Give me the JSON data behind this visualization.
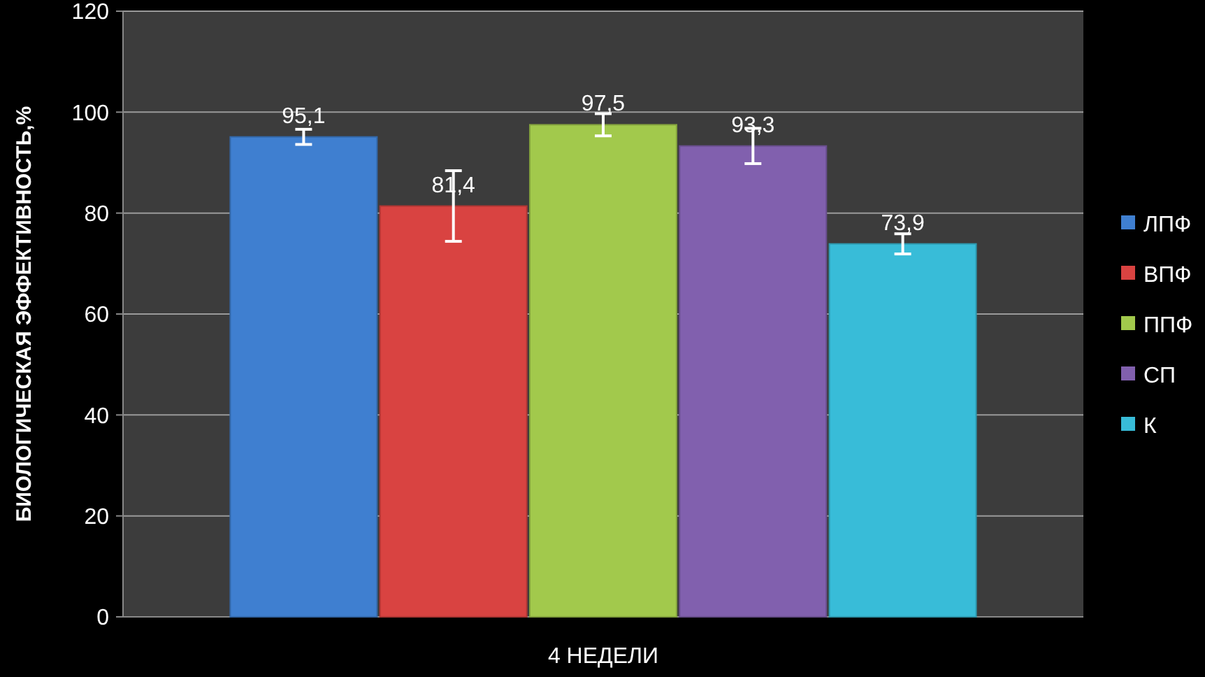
{
  "chart_data": {
    "type": "bar",
    "ylabel": "БИОЛОГИЧЕСКАЯ ЭФФЕКТИВНОСТЬ,%",
    "categories": [
      "4 НЕДЕЛИ"
    ],
    "series": [
      {
        "name": "ЛПФ",
        "color": "#3f7fd0",
        "values": [
          95.1
        ],
        "value_labels": [
          "95,1"
        ],
        "errors": [
          1.5
        ]
      },
      {
        "name": "ВПФ",
        "color": "#d94341",
        "values": [
          81.4
        ],
        "value_labels": [
          "81,4"
        ],
        "errors": [
          7
        ]
      },
      {
        "name": "ППФ",
        "color": "#a2c94c",
        "values": [
          97.5
        ],
        "value_labels": [
          "97,5"
        ],
        "errors": [
          2.2
        ]
      },
      {
        "name": "СП",
        "color": "#8160ae",
        "values": [
          93.3
        ],
        "value_labels": [
          "93,3"
        ],
        "errors": [
          3.5
        ]
      },
      {
        "name": "К",
        "color": "#38bcd8",
        "values": [
          73.9
        ],
        "value_labels": [
          "73,9"
        ],
        "errors": [
          2
        ]
      }
    ],
    "ylim": [
      0,
      120
    ],
    "yticks": [
      0,
      20,
      40,
      60,
      80,
      100,
      120
    ],
    "grid": "y",
    "legend": "right"
  }
}
